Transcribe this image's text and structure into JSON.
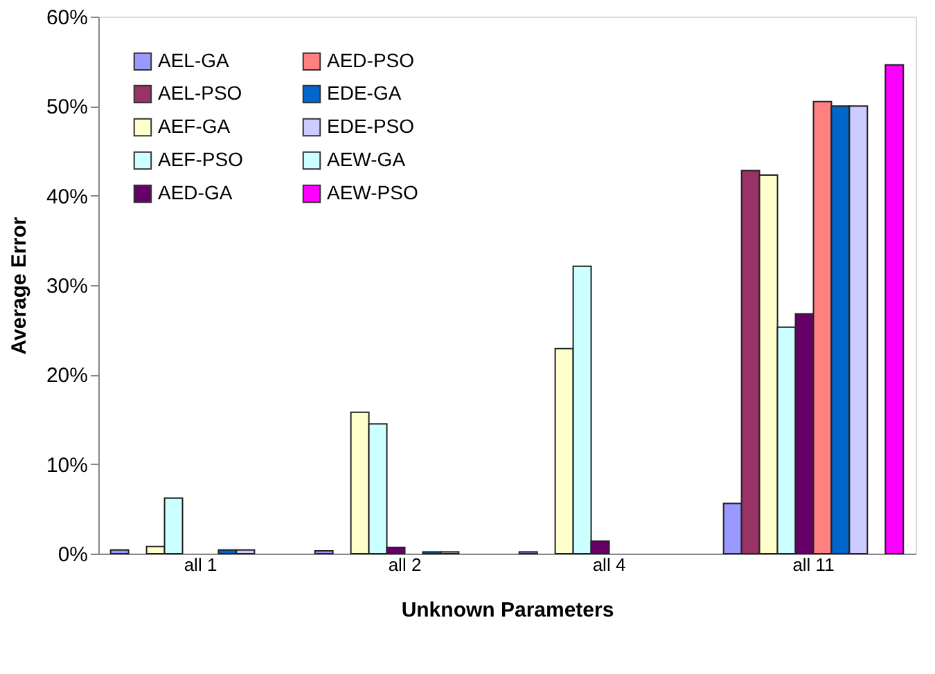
{
  "chart_data": {
    "type": "bar",
    "xlabel": "Unknown Parameters",
    "ylabel": "Average Error",
    "categories": [
      "all 1",
      "all 2",
      "all 4",
      "all 11"
    ],
    "series": [
      {
        "name": "AEL-GA",
        "color": "#9999ff",
        "values": [
          0.004,
          0.003,
          0.002,
          0.056
        ]
      },
      {
        "name": "AEL-PSO",
        "color": "#993366",
        "values": [
          null,
          null,
          null,
          0.428
        ]
      },
      {
        "name": "AEF-GA",
        "color": "#ffffcc",
        "values": [
          0.008,
          0.158,
          0.229,
          0.423
        ]
      },
      {
        "name": "AEF-PSO",
        "color": "#ccffff",
        "values": [
          0.062,
          0.145,
          0.321,
          0.253
        ]
      },
      {
        "name": "AED-GA",
        "color": "#660066",
        "values": [
          null,
          0.007,
          0.014,
          0.268
        ]
      },
      {
        "name": "AED-PSO",
        "color": "#ff8080",
        "values": [
          null,
          null,
          null,
          0.505
        ]
      },
      {
        "name": "EDE-GA",
        "color": "#0066cc",
        "values": [
          0.004,
          0.002,
          null,
          0.5
        ]
      },
      {
        "name": "EDE-PSO",
        "color": "#ccccff",
        "values": [
          0.004,
          0.002,
          null,
          0.5
        ]
      },
      {
        "name": "AEW-GA",
        "color": "#ccffff",
        "values": [
          null,
          null,
          null,
          null
        ]
      },
      {
        "name": "AEW-PSO",
        "color": "#ff00ff",
        "values": [
          null,
          null,
          null,
          0.546
        ]
      }
    ],
    "ylim": [
      0,
      0.6
    ],
    "yticks": [
      {
        "value": 0,
        "label": "0%"
      },
      {
        "value": 0.1,
        "label": "10%"
      },
      {
        "value": 0.2,
        "label": "20%"
      },
      {
        "value": 0.3,
        "label": "30%"
      },
      {
        "value": 0.4,
        "label": "40%"
      },
      {
        "value": 0.5,
        "label": "50%"
      },
      {
        "value": 0.6,
        "label": "60%"
      }
    ],
    "grid": false,
    "legend": "top left"
  }
}
